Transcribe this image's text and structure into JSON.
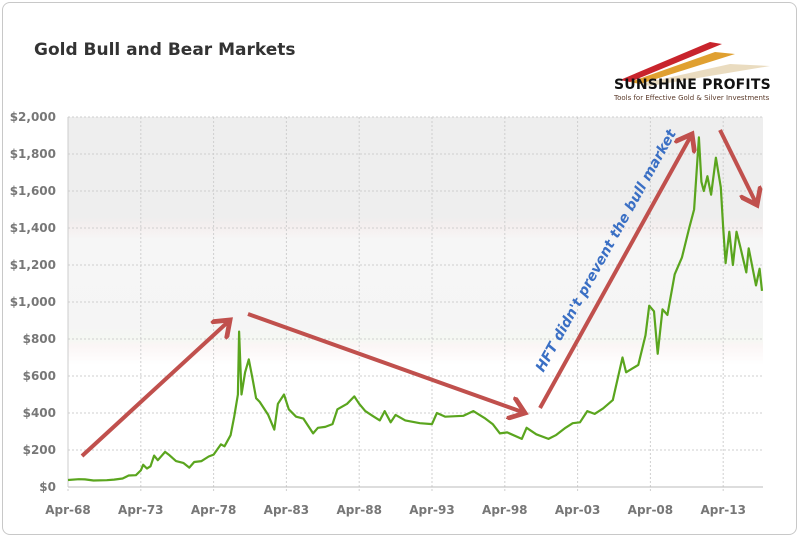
{
  "chart_data": {
    "type": "line",
    "title": "Gold Bull and Bear Markets",
    "xlabel": "",
    "ylabel": "",
    "ylim": [
      0,
      2000
    ],
    "yticks": [
      "$0",
      "$200",
      "$400",
      "$600",
      "$800",
      "$1,000",
      "$1,200",
      "$1,400",
      "$1,600",
      "$1,800",
      "$2,000"
    ],
    "xticks": [
      "Apr-68",
      "Apr-73",
      "Apr-78",
      "Apr-83",
      "Apr-88",
      "Apr-93",
      "Apr-98",
      "Apr-03",
      "Apr-08",
      "Apr-13"
    ],
    "grid": true,
    "line_color": "#5aa51e",
    "arrow_color": "#c0504d",
    "annotation": "HFT didn't prevent the bull market",
    "annotation_color": "#3a6fc4",
    "series": [
      {
        "points": [
          [
            "1968-04",
            38
          ],
          [
            "1969-01",
            42
          ],
          [
            "1969-06",
            41
          ],
          [
            "1970-01",
            35
          ],
          [
            "1970-12",
            37
          ],
          [
            "1971-06",
            40
          ],
          [
            "1972-01",
            46
          ],
          [
            "1972-06",
            62
          ],
          [
            "1972-12",
            64
          ],
          [
            "1973-04",
            90
          ],
          [
            "1973-06",
            120
          ],
          [
            "1973-09",
            100
          ],
          [
            "1973-12",
            112
          ],
          [
            "1974-03",
            170
          ],
          [
            "1974-06",
            145
          ],
          [
            "1974-12",
            190
          ],
          [
            "1975-03",
            175
          ],
          [
            "1975-09",
            140
          ],
          [
            "1976-03",
            130
          ],
          [
            "1976-08",
            105
          ],
          [
            "1976-12",
            135
          ],
          [
            "1977-06",
            140
          ],
          [
            "1977-12",
            165
          ],
          [
            "1978-04",
            175
          ],
          [
            "1978-10",
            230
          ],
          [
            "1979-01",
            220
          ],
          [
            "1979-06",
            280
          ],
          [
            "1979-09",
            380
          ],
          [
            "1979-12",
            500
          ],
          [
            "1980-01",
            840
          ],
          [
            "1980-03",
            500
          ],
          [
            "1980-06",
            620
          ],
          [
            "1980-09",
            690
          ],
          [
            "1980-12",
            590
          ],
          [
            "1981-03",
            480
          ],
          [
            "1981-06",
            460
          ],
          [
            "1981-09",
            430
          ],
          [
            "1982-01",
            390
          ],
          [
            "1982-06",
            310
          ],
          [
            "1982-09",
            450
          ],
          [
            "1983-02",
            500
          ],
          [
            "1983-06",
            420
          ],
          [
            "1983-12",
            380
          ],
          [
            "1984-06",
            370
          ],
          [
            "1985-02",
            290
          ],
          [
            "1985-06",
            320
          ],
          [
            "1985-12",
            325
          ],
          [
            "1986-06",
            340
          ],
          [
            "1986-10",
            420
          ],
          [
            "1987-06",
            450
          ],
          [
            "1987-12",
            490
          ],
          [
            "1988-04",
            450
          ],
          [
            "1988-09",
            410
          ],
          [
            "1989-03",
            385
          ],
          [
            "1989-09",
            360
          ],
          [
            "1990-01",
            410
          ],
          [
            "1990-06",
            350
          ],
          [
            "1990-10",
            390
          ],
          [
            "1991-06",
            360
          ],
          [
            "1992-06",
            345
          ],
          [
            "1993-04",
            340
          ],
          [
            "1993-08",
            400
          ],
          [
            "1994-03",
            380
          ],
          [
            "1995-06",
            385
          ],
          [
            "1996-02",
            410
          ],
          [
            "1996-12",
            370
          ],
          [
            "1997-06",
            340
          ],
          [
            "1997-12",
            290
          ],
          [
            "1998-06",
            295
          ],
          [
            "1999-06",
            260
          ],
          [
            "1999-10",
            320
          ],
          [
            "2000-06",
            285
          ],
          [
            "2001-04",
            260
          ],
          [
            "2001-10",
            280
          ],
          [
            "2002-06",
            320
          ],
          [
            "2002-12",
            345
          ],
          [
            "2003-06",
            350
          ],
          [
            "2003-12",
            410
          ],
          [
            "2004-06",
            395
          ],
          [
            "2005-01",
            425
          ],
          [
            "2005-09",
            470
          ],
          [
            "2006-05",
            700
          ],
          [
            "2006-08",
            620
          ],
          [
            "2007-01",
            640
          ],
          [
            "2007-06",
            660
          ],
          [
            "2007-12",
            820
          ],
          [
            "2008-03",
            980
          ],
          [
            "2008-07",
            950
          ],
          [
            "2008-10",
            720
          ],
          [
            "2009-02",
            960
          ],
          [
            "2009-06",
            930
          ],
          [
            "2009-12",
            1150
          ],
          [
            "2010-06",
            1240
          ],
          [
            "2010-12",
            1400
          ],
          [
            "2011-04",
            1500
          ],
          [
            "2011-08",
            1890
          ],
          [
            "2011-10",
            1650
          ],
          [
            "2011-12",
            1600
          ],
          [
            "2012-03",
            1680
          ],
          [
            "2012-06",
            1580
          ],
          [
            "2012-10",
            1780
          ],
          [
            "2013-02",
            1620
          ],
          [
            "2013-04",
            1400
          ],
          [
            "2013-06",
            1210
          ],
          [
            "2013-09",
            1380
          ],
          [
            "2013-12",
            1200
          ],
          [
            "2014-03",
            1380
          ],
          [
            "2014-06",
            1300
          ],
          [
            "2014-11",
            1160
          ],
          [
            "2015-01",
            1290
          ],
          [
            "2015-07",
            1090
          ],
          [
            "2015-10",
            1180
          ],
          [
            "2015-12",
            1060
          ]
        ]
      }
    ]
  },
  "logo": {
    "name": "SUNSHINE PROFITS",
    "tagline": "Tools for Effective Gold & Silver Investments"
  }
}
